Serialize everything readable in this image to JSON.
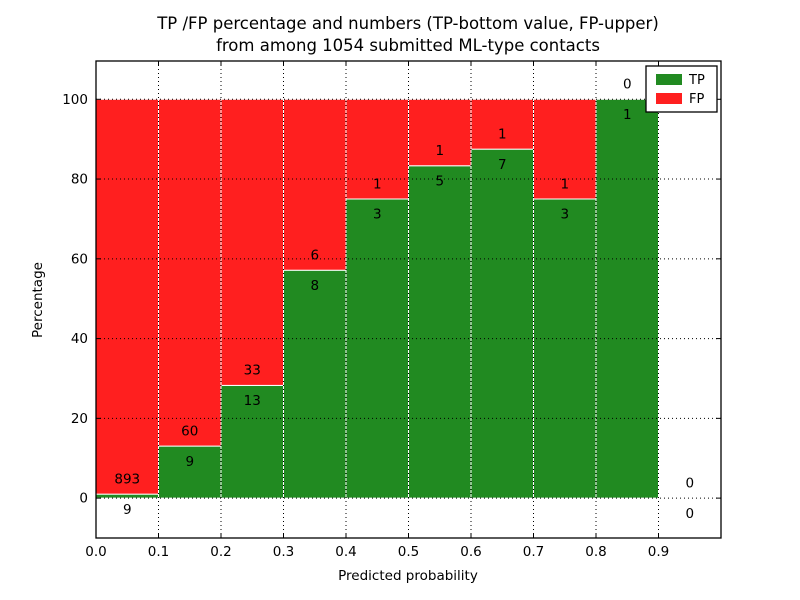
{
  "chart_data": {
    "type": "bar",
    "stacked": true,
    "orientation": "vertical",
    "title": "TP /FP percentage and numbers (TP-bottom value, FP-upper) from among 1054 submitted ML-type contacts",
    "title_lines": [
      "TP /FP percentage and numbers (TP-bottom value, FP-upper)",
      "from among 1054 submitted ML-type contacts"
    ],
    "xlabel": "Predicted probability",
    "ylabel": "Percentage",
    "total_submitted_contacts": 1054,
    "xlim": [
      0.0,
      1.0
    ],
    "ylim": [
      -10,
      109.6
    ],
    "xtick_values": [
      0.0,
      0.1,
      0.2,
      0.3,
      0.4,
      0.5,
      0.6,
      0.7,
      0.8,
      0.9
    ],
    "xtick_labels": [
      "0.0",
      "0.1",
      "0.2",
      "0.3",
      "0.4",
      "0.5",
      "0.6",
      "0.7",
      "0.8",
      "0.9"
    ],
    "ytick_values": [
      0,
      20,
      40,
      60,
      80,
      100
    ],
    "ytick_labels": [
      "0",
      "20",
      "40",
      "60",
      "80",
      "100"
    ],
    "grid": "dotted black, horizontal and vertical, drawn over bars",
    "bar_edge_color": "#ffffff",
    "bins": [
      {
        "range": [
          0.0,
          0.1
        ],
        "tp": 9,
        "fp": 893,
        "tp_percent": 1.0
      },
      {
        "range": [
          0.1,
          0.2
        ],
        "tp": 9,
        "fp": 60,
        "tp_percent": 13.0
      },
      {
        "range": [
          0.2,
          0.3
        ],
        "tp": 13,
        "fp": 33,
        "tp_percent": 28.3
      },
      {
        "range": [
          0.3,
          0.4
        ],
        "tp": 8,
        "fp": 6,
        "tp_percent": 57.1
      },
      {
        "range": [
          0.4,
          0.5
        ],
        "tp": 3,
        "fp": 1,
        "tp_percent": 75.0
      },
      {
        "range": [
          0.5,
          0.6
        ],
        "tp": 5,
        "fp": 1,
        "tp_percent": 83.3
      },
      {
        "range": [
          0.6,
          0.7
        ],
        "tp": 7,
        "fp": 1,
        "tp_percent": 87.5
      },
      {
        "range": [
          0.7,
          0.8
        ],
        "tp": 3,
        "fp": 1,
        "tp_percent": 75.0
      },
      {
        "range": [
          0.8,
          0.9
        ],
        "tp": 1,
        "fp": 0,
        "tp_percent": 100.0
      },
      {
        "range": [
          0.9,
          1.0
        ],
        "tp": 0,
        "fp": 0,
        "tp_percent": null
      }
    ],
    "series": [
      {
        "name": "TP",
        "color": "#218a21",
        "values": [
          9,
          9,
          13,
          8,
          3,
          5,
          7,
          3,
          1,
          0
        ]
      },
      {
        "name": "FP",
        "color": "#ff1f1f",
        "values": [
          893,
          60,
          33,
          6,
          1,
          1,
          1,
          1,
          0,
          0
        ]
      }
    ],
    "legend": {
      "position": "upper right",
      "entries": [
        {
          "label": "TP",
          "color": "#218a21"
        },
        {
          "label": "FP",
          "color": "#ff1f1f"
        }
      ]
    }
  }
}
